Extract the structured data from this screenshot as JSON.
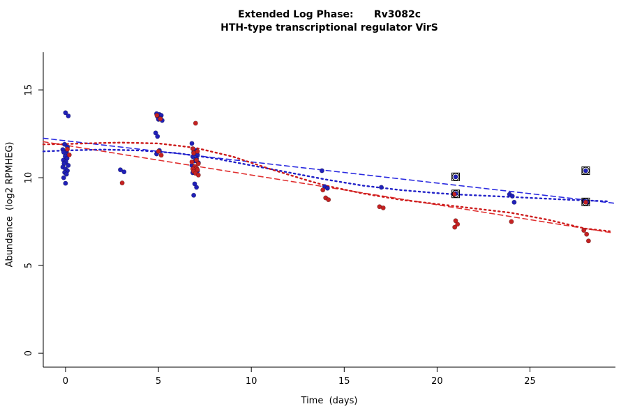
{
  "title": "Extended Log Phase:      Rv3082c",
  "subtitle": "HTH-type transcriptional regulator VirS",
  "chart_data": {
    "type": "scatter",
    "title": "Extended Log Phase: Rv3082c",
    "subtitle": "HTH-type transcriptional regulator VirS",
    "xlabel": "Time  (days)",
    "ylabel": "Abundance  (log2 RPMHEG)",
    "xlim": [
      -1.2,
      29.6
    ],
    "ylim": [
      -0.79,
      17.74
    ],
    "x_ticks": [
      0,
      5,
      10,
      15,
      20,
      25
    ],
    "y_ticks": [
      0,
      5,
      10,
      15
    ],
    "grid": false,
    "legend": "none",
    "point_color_blue": "#2121b8",
    "point_color_red": "#c42222",
    "series": [
      {
        "name": "blue-points",
        "color": "#2121b8",
        "points": [
          [
            0.0,
            13.7
          ],
          [
            0.15,
            13.52
          ],
          [
            -0.05,
            11.9
          ],
          [
            0.1,
            11.75
          ],
          [
            -0.15,
            11.6
          ],
          [
            0.05,
            11.5
          ],
          [
            -0.1,
            11.45
          ],
          [
            0.12,
            11.32
          ],
          [
            -0.02,
            11.22
          ],
          [
            0.08,
            11.1
          ],
          [
            -0.12,
            11.0
          ],
          [
            0.02,
            10.9
          ],
          [
            -0.08,
            10.8
          ],
          [
            0.15,
            10.7
          ],
          [
            -0.15,
            10.6
          ],
          [
            0.0,
            10.5
          ],
          [
            0.1,
            10.4
          ],
          [
            -0.05,
            10.3
          ],
          [
            0.05,
            10.2
          ],
          [
            -0.1,
            10.0
          ],
          [
            0.0,
            9.68
          ],
          [
            2.95,
            10.45
          ],
          [
            3.15,
            10.33
          ],
          [
            4.9,
            13.65
          ],
          [
            5.05,
            13.6
          ],
          [
            5.15,
            13.55
          ],
          [
            4.95,
            13.48
          ],
          [
            5.1,
            13.4
          ],
          [
            5.0,
            13.32
          ],
          [
            5.2,
            13.26
          ],
          [
            4.85,
            12.55
          ],
          [
            4.95,
            12.35
          ],
          [
            5.05,
            11.55
          ],
          [
            4.9,
            11.35
          ],
          [
            6.8,
            11.95
          ],
          [
            7.0,
            11.55
          ],
          [
            6.9,
            11.45
          ],
          [
            7.1,
            11.3
          ],
          [
            6.85,
            11.2
          ],
          [
            7.05,
            11.1
          ],
          [
            6.95,
            10.95
          ],
          [
            7.15,
            10.85
          ],
          [
            6.8,
            10.7
          ],
          [
            7.0,
            10.58
          ],
          [
            6.9,
            10.45
          ],
          [
            7.1,
            10.38
          ],
          [
            6.85,
            10.28
          ],
          [
            6.95,
            9.65
          ],
          [
            7.05,
            9.45
          ],
          [
            6.9,
            9.0
          ],
          [
            13.8,
            10.4
          ],
          [
            13.95,
            9.5
          ],
          [
            14.1,
            9.4
          ],
          [
            17.0,
            9.45
          ],
          [
            21.0,
            10.05
          ],
          [
            21.0,
            9.1
          ],
          [
            23.9,
            9.05
          ],
          [
            24.05,
            8.95
          ],
          [
            24.15,
            8.6
          ],
          [
            28.0,
            10.4
          ],
          [
            27.9,
            8.68
          ],
          [
            28.1,
            8.6
          ]
        ]
      },
      {
        "name": "red-points",
        "color": "#c42222",
        "points": [
          [
            0.1,
            11.62
          ],
          [
            0.2,
            11.3
          ],
          [
            3.05,
            9.7
          ],
          [
            4.92,
            13.55
          ],
          [
            5.1,
            13.35
          ],
          [
            5.0,
            11.5
          ],
          [
            5.15,
            11.28
          ],
          [
            7.0,
            13.1
          ],
          [
            6.85,
            11.65
          ],
          [
            7.1,
            11.5
          ],
          [
            6.9,
            11.4
          ],
          [
            7.05,
            11.0
          ],
          [
            6.8,
            10.9
          ],
          [
            7.15,
            10.8
          ],
          [
            6.95,
            10.65
          ],
          [
            7.05,
            10.55
          ],
          [
            6.85,
            10.5
          ],
          [
            7.1,
            10.45
          ],
          [
            6.9,
            10.35
          ],
          [
            7.0,
            10.25
          ],
          [
            7.15,
            10.15
          ],
          [
            13.85,
            9.3
          ],
          [
            14.0,
            8.85
          ],
          [
            14.15,
            8.75
          ],
          [
            16.9,
            8.35
          ],
          [
            17.1,
            8.28
          ],
          [
            20.92,
            9.05
          ],
          [
            21.0,
            7.55
          ],
          [
            21.1,
            7.35
          ],
          [
            20.95,
            7.18
          ],
          [
            24.0,
            7.5
          ],
          [
            28.0,
            8.6
          ],
          [
            27.9,
            7.0
          ],
          [
            28.05,
            6.78
          ],
          [
            28.15,
            6.4
          ]
        ]
      }
    ],
    "trend_lines": [
      {
        "name": "blue-dashed-linear-fit",
        "color": "#2a2ae0",
        "style": "dashed",
        "points": [
          [
            -1.2,
            12.25
          ],
          [
            29.5,
            8.55
          ]
        ]
      },
      {
        "name": "red-dashed-linear-fit",
        "color": "#e03030",
        "style": "dashed",
        "points": [
          [
            -1.2,
            12.05
          ],
          [
            29.5,
            6.85
          ]
        ]
      },
      {
        "name": "blue-dotted-smooth-fit",
        "color": "#2121c8",
        "style": "dotted",
        "points": [
          [
            -1.2,
            11.5
          ],
          [
            0,
            11.55
          ],
          [
            2,
            11.6
          ],
          [
            4,
            11.55
          ],
          [
            6,
            11.4
          ],
          [
            8,
            11.1
          ],
          [
            10,
            10.7
          ],
          [
            12,
            10.3
          ],
          [
            14,
            9.9
          ],
          [
            16,
            9.55
          ],
          [
            18,
            9.3
          ],
          [
            20,
            9.12
          ],
          [
            21,
            9.05
          ],
          [
            23,
            8.95
          ],
          [
            25,
            8.85
          ],
          [
            27,
            8.75
          ],
          [
            29.3,
            8.65
          ]
        ]
      },
      {
        "name": "red-dotted-smooth-fit",
        "color": "#cc1a1a",
        "style": "dotted",
        "points": [
          [
            -1.2,
            11.9
          ],
          [
            0,
            11.92
          ],
          [
            2,
            11.98
          ],
          [
            3,
            12.0
          ],
          [
            5,
            11.95
          ],
          [
            7,
            11.7
          ],
          [
            9,
            11.2
          ],
          [
            11,
            10.5
          ],
          [
            13,
            9.85
          ],
          [
            14,
            9.55
          ],
          [
            16,
            9.1
          ],
          [
            18,
            8.75
          ],
          [
            20,
            8.5
          ],
          [
            22,
            8.25
          ],
          [
            24,
            8.0
          ],
          [
            26,
            7.6
          ],
          [
            28,
            7.1
          ],
          [
            29.3,
            6.95
          ]
        ]
      }
    ],
    "marked_points": [
      [
        21,
        10.05
      ],
      [
        21,
        9.08
      ],
      [
        28,
        10.4
      ],
      [
        28,
        8.62
      ]
    ]
  }
}
